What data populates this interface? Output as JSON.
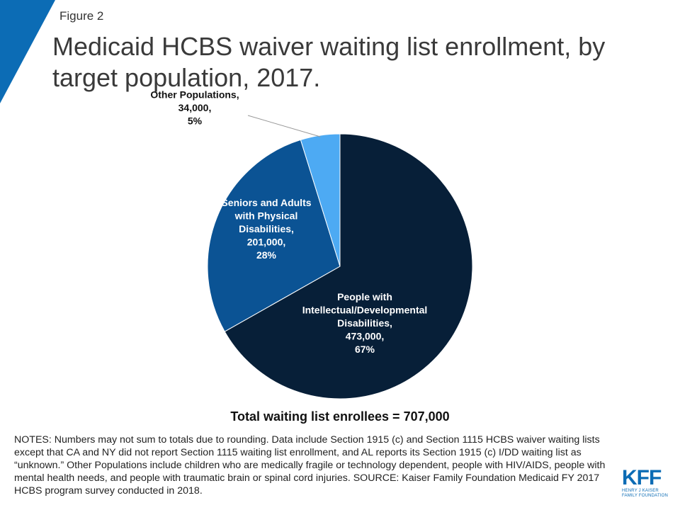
{
  "figure_label": "Figure 2",
  "title": "Medicaid HCBS waiver waiting list enrollment, by target population, 2017.",
  "colors": {
    "accent_triangle": "#0c6cb5",
    "title_text": "#3a3a3a",
    "brand": "#0c6cb5"
  },
  "chart_data": {
    "type": "pie",
    "title": "",
    "start_angle_deg": 0,
    "direction": "clockwise",
    "slices": [
      {
        "label_lines": [
          "People with",
          "Intellectual/Developmental",
          "Disabilities,",
          "473,000,",
          "67%"
        ],
        "value": 473000,
        "percent": 67,
        "color": "#071f38",
        "label_color": "#ffffff"
      },
      {
        "label_lines": [
          "Seniors and Adults",
          "with Physical",
          "Disabilities,",
          "201,000,",
          "28%"
        ],
        "value": 201000,
        "percent": 28,
        "color": "#0b5394",
        "label_color": "#ffffff"
      },
      {
        "label_lines": [
          "Other Populations,",
          "34,000,",
          "5%"
        ],
        "value": 34000,
        "percent": 5,
        "color": "#4daaf3",
        "label_color": "#111111",
        "label_outside": true
      }
    ],
    "total_label": "Total waiting list enrollees = 707,000"
  },
  "notes": "NOTES: Numbers may not sum to totals due to rounding. Data include Section 1915 (c) and Section 1115 HCBS waiver waiting lists except that CA and NY did not report Section 1115 waiting list enrollment,  and AL reports its Section 1915 (c) I/DD waiting list as “unknown.”  Other Populations include children who are medically fragile or technology dependent, people with HIV/AIDS, people with mental health needs, and people with traumatic brain or spinal cord injuries.  SOURCE: Kaiser Family Foundation Medicaid FY 2017 HCBS program survey  conducted in 2018.",
  "logo": {
    "wordmark": "KFF",
    "subtext_line1": "HENRY J KAISER",
    "subtext_line2": "FAMILY FOUNDATION"
  }
}
